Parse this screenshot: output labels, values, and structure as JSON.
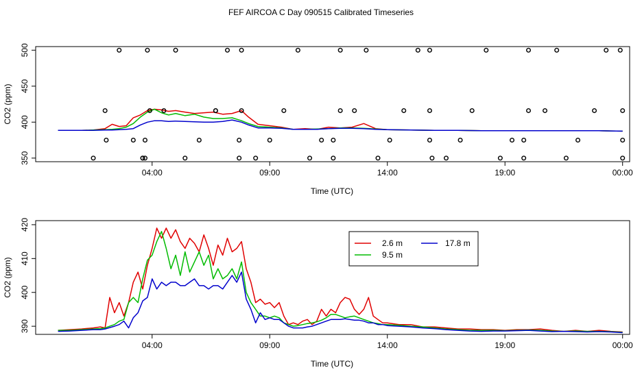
{
  "title": "FEF AIRCOA C  Day 090515  Calibrated Timeseries",
  "colors": {
    "s26": "#e00000",
    "s95": "#00bb00",
    "s178": "#0000cc",
    "points": "#000000"
  },
  "chart_data": [
    {
      "type": "scatter",
      "xlabel": "Time (UTC)",
      "ylabel": "CO2 (ppm)",
      "xlim": [
        -0.95,
        24.3
      ],
      "ylim": [
        345,
        505
      ],
      "x_tick_values": [
        4,
        9,
        14,
        19,
        24
      ],
      "x_tick_labels": [
        "04:00",
        "09:00",
        "14:00",
        "19:00",
        "00:00"
      ],
      "y_ticks": [
        350,
        400,
        450,
        500
      ],
      "y_tick_labels": [
        "350",
        "400",
        "450",
        "500"
      ],
      "reference_points": [
        {
          "x": 1.5,
          "y": 350
        },
        {
          "x": 3.6,
          "y": 350
        },
        {
          "x": 2.05,
          "y": 375
        },
        {
          "x": 3.2,
          "y": 375
        },
        {
          "x": 3.7,
          "y": 375
        },
        {
          "x": 3.6,
          "y": 350
        },
        {
          "x": 3.7,
          "y": 350
        },
        {
          "x": 5.4,
          "y": 350
        },
        {
          "x": 6.0,
          "y": 375
        },
        {
          "x": 7.7,
          "y": 375
        },
        {
          "x": 7.7,
          "y": 350
        },
        {
          "x": 8.4,
          "y": 350
        },
        {
          "x": 9.0,
          "y": 375
        },
        {
          "x": 10.7,
          "y": 350
        },
        {
          "x": 11.2,
          "y": 375
        },
        {
          "x": 11.7,
          "y": 375
        },
        {
          "x": 11.7,
          "y": 350
        },
        {
          "x": 13.6,
          "y": 350
        },
        {
          "x": 14.1,
          "y": 375
        },
        {
          "x": 15.8,
          "y": 375
        },
        {
          "x": 15.9,
          "y": 350
        },
        {
          "x": 16.5,
          "y": 350
        },
        {
          "x": 17.1,
          "y": 375
        },
        {
          "x": 18.8,
          "y": 350
        },
        {
          "x": 19.3,
          "y": 375
        },
        {
          "x": 19.8,
          "y": 375
        },
        {
          "x": 19.8,
          "y": 350
        },
        {
          "x": 21.6,
          "y": 350
        },
        {
          "x": 22.1,
          "y": 375
        },
        {
          "x": 24.0,
          "y": 375
        },
        {
          "x": 24.0,
          "y": 350
        },
        {
          "x": 2.6,
          "y": 500
        },
        {
          "x": 3.8,
          "y": 500
        },
        {
          "x": 5.0,
          "y": 500
        },
        {
          "x": 7.2,
          "y": 500
        },
        {
          "x": 7.8,
          "y": 500
        },
        {
          "x": 10.2,
          "y": 500
        },
        {
          "x": 12.0,
          "y": 500
        },
        {
          "x": 13.1,
          "y": 500
        },
        {
          "x": 15.3,
          "y": 500
        },
        {
          "x": 15.8,
          "y": 500
        },
        {
          "x": 18.2,
          "y": 500
        },
        {
          "x": 20.0,
          "y": 500
        },
        {
          "x": 21.2,
          "y": 500
        },
        {
          "x": 23.3,
          "y": 500
        },
        {
          "x": 23.9,
          "y": 500
        },
        {
          "x": 2.0,
          "y": 416
        },
        {
          "x": 3.9,
          "y": 416
        },
        {
          "x": 4.5,
          "y": 416
        },
        {
          "x": 6.7,
          "y": 416
        },
        {
          "x": 6.7,
          "y": 416
        },
        {
          "x": 7.8,
          "y": 416
        },
        {
          "x": 9.6,
          "y": 416
        },
        {
          "x": 12.0,
          "y": 416
        },
        {
          "x": 12.6,
          "y": 416
        },
        {
          "x": 14.7,
          "y": 416
        },
        {
          "x": 15.8,
          "y": 416
        },
        {
          "x": 17.6,
          "y": 416
        },
        {
          "x": 20.0,
          "y": 416
        },
        {
          "x": 20.7,
          "y": 416
        },
        {
          "x": 22.8,
          "y": 416
        },
        {
          "x": 24.0,
          "y": 416
        }
      ],
      "series": [
        {
          "name": "2.6 m",
          "x": [
            0,
            1,
            1.5,
            2,
            2.3,
            2.6,
            2.9,
            3.2,
            3.5,
            3.8,
            4.1,
            4.4,
            4.7,
            5,
            5.4,
            5.8,
            6.2,
            6.6,
            7,
            7.4,
            7.8,
            8.1,
            8.5,
            9,
            9.5,
            10,
            10.5,
            11,
            11.5,
            12,
            12.5,
            13,
            13.5,
            14,
            15,
            16,
            17,
            18,
            19,
            20,
            21,
            22,
            23,
            24
          ],
          "y": [
            388.5,
            388.5,
            389,
            391,
            397,
            394,
            395,
            406,
            410,
            416,
            418,
            417,
            415,
            416,
            414,
            412,
            413,
            414,
            411,
            412,
            416,
            407,
            397,
            395,
            393,
            390,
            391,
            390,
            393,
            392,
            393,
            398,
            391,
            389.5,
            389,
            388.5,
            388.5,
            388,
            388,
            388,
            388,
            388,
            388,
            387.5
          ]
        },
        {
          "name": "9.5 m",
          "x": [
            0,
            1,
            1.5,
            2,
            2.3,
            2.6,
            2.9,
            3.2,
            3.5,
            3.8,
            4.1,
            4.4,
            4.7,
            5,
            5.4,
            5.8,
            6.2,
            6.6,
            7,
            7.4,
            7.8,
            8.1,
            8.5,
            9,
            9.5,
            10,
            10.5,
            11,
            11.5,
            12,
            12.5,
            13,
            13.5,
            14,
            15,
            16,
            17,
            18,
            19,
            20,
            21,
            22,
            23,
            24
          ],
          "y": [
            388.5,
            388.5,
            389,
            389.5,
            390,
            391,
            393,
            398,
            407,
            414,
            418,
            413,
            410,
            412,
            409,
            411,
            407,
            405,
            405,
            406,
            402,
            398,
            394,
            393,
            392,
            390,
            390,
            390.5,
            391,
            392,
            392,
            391.5,
            390.5,
            389.5,
            389,
            388.5,
            388.5,
            388,
            388,
            388,
            388,
            388,
            388,
            387.5
          ]
        },
        {
          "name": "17.8 m",
          "x": [
            0,
            1,
            1.5,
            2,
            2.3,
            2.6,
            2.9,
            3.2,
            3.5,
            3.8,
            4.1,
            4.4,
            4.7,
            5,
            5.4,
            5.8,
            6.2,
            6.6,
            7,
            7.4,
            7.8,
            8.1,
            8.5,
            9,
            9.5,
            10,
            10.5,
            11,
            11.5,
            12,
            12.5,
            13,
            13.5,
            14,
            15,
            16,
            17,
            18,
            19,
            20,
            21,
            22,
            23,
            24
          ],
          "y": [
            388.5,
            388.5,
            388.5,
            389,
            389,
            389.5,
            390,
            391,
            396,
            400,
            402,
            402,
            401,
            401.5,
            401,
            400.5,
            400,
            400,
            401,
            403,
            400,
            396,
            392,
            392,
            391.5,
            390,
            390,
            390,
            391,
            391.5,
            391.5,
            391,
            390,
            389.5,
            389,
            388.5,
            388.5,
            388,
            388,
            388,
            388,
            388,
            388,
            387.5
          ]
        }
      ]
    },
    {
      "type": "line",
      "xlabel": "Time (UTC)",
      "ylabel": "CO2 (ppm)",
      "xlim": [
        -0.95,
        24.3
      ],
      "ylim": [
        387.6,
        421.2
      ],
      "x_tick_values": [
        4,
        9,
        14,
        19,
        24
      ],
      "x_tick_labels": [
        "04:00",
        "09:00",
        "14:00",
        "19:00",
        "00:00"
      ],
      "y_ticks": [
        390,
        400,
        410,
        420
      ],
      "y_tick_labels": [
        "390",
        "400",
        "410",
        "420"
      ],
      "legend": {
        "position": "top-right",
        "entries": [
          "2.6 m",
          "9.5 m",
          "17.8 m"
        ]
      },
      "series": [
        {
          "name": "2.6 m",
          "x": [
            0,
            0.5,
            1,
            1.5,
            1.8,
            2,
            2.2,
            2.4,
            2.6,
            2.8,
            3,
            3.2,
            3.4,
            3.6,
            3.8,
            4,
            4.2,
            4.4,
            4.6,
            4.8,
            5,
            5.2,
            5.4,
            5.6,
            5.8,
            6,
            6.2,
            6.4,
            6.6,
            6.8,
            7,
            7.2,
            7.4,
            7.6,
            7.8,
            8,
            8.2,
            8.4,
            8.6,
            8.8,
            9,
            9.2,
            9.4,
            9.6,
            9.8,
            10,
            10.2,
            10.4,
            10.6,
            10.8,
            11,
            11.2,
            11.4,
            11.6,
            11.8,
            12,
            12.2,
            12.4,
            12.6,
            12.8,
            13,
            13.2,
            13.4,
            13.6,
            13.8,
            14,
            14.5,
            15,
            15.5,
            16,
            16.5,
            17,
            17.5,
            18,
            18.5,
            19,
            19.5,
            20,
            20.5,
            21,
            21.5,
            22,
            22.5,
            23,
            23.5,
            24
          ],
          "y": [
            388.8,
            389,
            389.2,
            389.5,
            389.8,
            389.5,
            398.5,
            394,
            397,
            393,
            397,
            403,
            406,
            401,
            408,
            413,
            419,
            416,
            419,
            416,
            418.5,
            415,
            413,
            416,
            414.5,
            412,
            417,
            413,
            408,
            414,
            411,
            416,
            412,
            413,
            415,
            407,
            403,
            397,
            398,
            396.5,
            397,
            395.5,
            397,
            393,
            390.5,
            391,
            390.5,
            391.5,
            392,
            390.5,
            391.5,
            395,
            393,
            395,
            394,
            397,
            398.5,
            398,
            395,
            393.5,
            395,
            398.5,
            393,
            392,
            391,
            391,
            390.5,
            390.5,
            389.8,
            389.8,
            389.5,
            389.2,
            389.2,
            389,
            389,
            388.8,
            389,
            389,
            389.2,
            388.8,
            388.5,
            388.8,
            388.5,
            388.8,
            388.5,
            388.3
          ]
        },
        {
          "name": "9.5 m",
          "x": [
            0,
            0.5,
            1,
            1.5,
            1.8,
            2,
            2.2,
            2.4,
            2.6,
            2.8,
            3,
            3.2,
            3.4,
            3.6,
            3.8,
            4,
            4.2,
            4.4,
            4.6,
            4.8,
            5,
            5.2,
            5.4,
            5.6,
            5.8,
            6,
            6.2,
            6.4,
            6.6,
            6.8,
            7,
            7.2,
            7.4,
            7.6,
            7.8,
            8,
            8.2,
            8.4,
            8.6,
            8.8,
            9,
            9.2,
            9.4,
            9.6,
            9.8,
            10,
            10.2,
            10.4,
            10.6,
            10.8,
            11,
            11.2,
            11.4,
            11.6,
            11.8,
            12,
            12.2,
            12.4,
            12.6,
            12.8,
            13,
            13.2,
            13.4,
            13.6,
            13.8,
            14,
            14.5,
            15,
            15.5,
            16,
            16.5,
            17,
            17.5,
            18,
            18.5,
            19,
            19.5,
            20,
            20.5,
            21,
            21.5,
            22,
            22.5,
            23,
            23.5,
            24
          ],
          "y": [
            388.8,
            388.8,
            389,
            389.2,
            389.3,
            389.5,
            390,
            390.5,
            391.5,
            392,
            397,
            398.5,
            397,
            404,
            409.5,
            411,
            415,
            418,
            413,
            407,
            411,
            405,
            412,
            406,
            409,
            412,
            408,
            411,
            404,
            407,
            404,
            405,
            407,
            404,
            409,
            400,
            397,
            395,
            393,
            393,
            392.5,
            393,
            392.5,
            391,
            390.5,
            390,
            390.2,
            390.5,
            390.8,
            391,
            391.3,
            391.8,
            392.5,
            393.5,
            393.5,
            393,
            392.5,
            392.8,
            393,
            392.5,
            392,
            391.5,
            391,
            390.8,
            390.5,
            390.5,
            390.3,
            390,
            389.8,
            389.5,
            389.2,
            389,
            388.8,
            388.8,
            388.8,
            388.7,
            388.8,
            388.9,
            388.8,
            388.6,
            388.5,
            388.6,
            388.5,
            388.5,
            388.4,
            388.2
          ]
        },
        {
          "name": "17.8 m",
          "x": [
            0,
            0.5,
            1,
            1.5,
            1.8,
            2,
            2.2,
            2.4,
            2.6,
            2.8,
            3,
            3.2,
            3.4,
            3.6,
            3.8,
            4,
            4.2,
            4.4,
            4.6,
            4.8,
            5,
            5.2,
            5.4,
            5.6,
            5.8,
            6,
            6.2,
            6.4,
            6.6,
            6.8,
            7,
            7.2,
            7.4,
            7.6,
            7.8,
            8,
            8.2,
            8.4,
            8.6,
            8.8,
            9,
            9.2,
            9.4,
            9.6,
            9.8,
            10,
            10.2,
            10.4,
            10.6,
            10.8,
            11,
            11.2,
            11.4,
            11.6,
            11.8,
            12,
            12.2,
            12.4,
            12.6,
            12.8,
            13,
            13.2,
            13.4,
            13.6,
            13.8,
            14,
            14.5,
            15,
            15.5,
            16,
            16.5,
            17,
            17.5,
            18,
            18.5,
            19,
            19.5,
            20,
            20.5,
            21,
            21.5,
            22,
            22.5,
            23,
            23.5,
            24
          ],
          "y": [
            388.5,
            388.6,
            388.8,
            389,
            389,
            389.2,
            389.6,
            390,
            390.5,
            391.5,
            389.5,
            392.5,
            394,
            397.5,
            398.5,
            404,
            401,
            403,
            402,
            403,
            403,
            402,
            402,
            403,
            404,
            402,
            402,
            401,
            402,
            402,
            401,
            403,
            405,
            403,
            406,
            398,
            395,
            391,
            394,
            392,
            392.5,
            392,
            392,
            391,
            390,
            389.5,
            389.5,
            389.5,
            389.8,
            390,
            390.5,
            391,
            391.5,
            392,
            392,
            392,
            392.2,
            392,
            391.8,
            391.8,
            391.5,
            391,
            391,
            390.5,
            390.5,
            390.2,
            390,
            389.8,
            389.5,
            389.3,
            389,
            388.8,
            388.6,
            388.5,
            388.6,
            388.6,
            388.7,
            388.8,
            388.6,
            388.4,
            388.5,
            388.4,
            388.3,
            388.4,
            388.3,
            388.1
          ]
        }
      ]
    }
  ]
}
